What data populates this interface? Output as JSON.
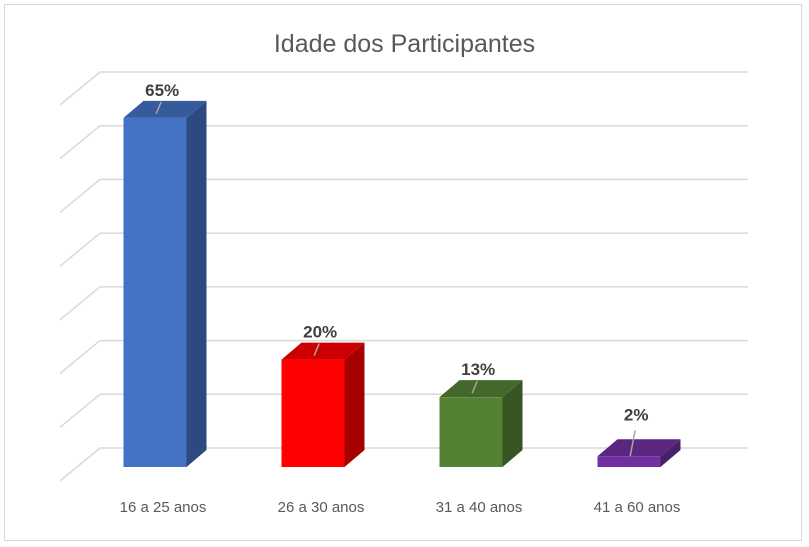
{
  "chart_data": {
    "type": "bar",
    "title": "Idade dos Participantes",
    "categories": [
      "16 a 25 anos",
      "26 a 30 anos",
      "31 a 40 anos",
      "41 a 60 anos"
    ],
    "values": [
      65,
      20,
      13,
      2
    ],
    "data_labels": [
      "65%",
      "20%",
      "13%",
      "2%"
    ],
    "ylim": [
      0,
      70
    ],
    "grid": true,
    "legend": "none",
    "colors": [
      "#4472C4",
      "#FF0000",
      "#548235",
      "#7030A0"
    ]
  }
}
